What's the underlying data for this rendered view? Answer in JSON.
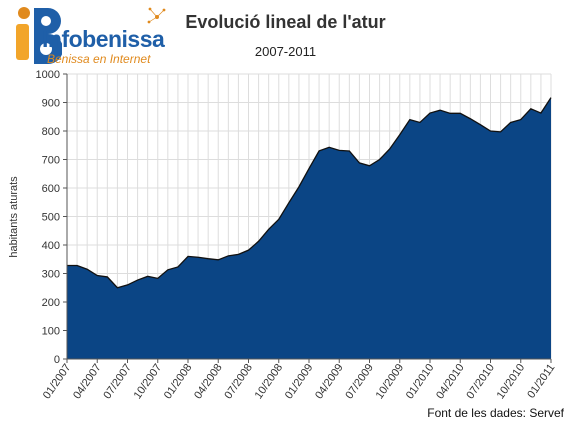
{
  "logo": {
    "brand": "Infobenissa",
    "tagline": "Benissa en Internet"
  },
  "colors": {
    "area_fill": "#0b4585",
    "area_line": "#111111",
    "grid": "#dddddd",
    "brand": "#1f5fa8",
    "brand_accent": "#e08a1e"
  },
  "source_note": "Font de les dades: Servef",
  "chart_data": {
    "type": "area",
    "title": "Evolució lineal de l'atur",
    "subtitle": "2007-2011",
    "xlabel": "",
    "ylabel": "habitants aturats",
    "ylim": [
      0,
      1000
    ],
    "yticks": [
      0,
      100,
      200,
      300,
      400,
      500,
      600,
      700,
      800,
      900,
      1000
    ],
    "grid": true,
    "x_tick_labels": [
      "01/2007",
      "04/2007",
      "07/2007",
      "10/2007",
      "01/2008",
      "04/2008",
      "07/2008",
      "10/2008",
      "01/2009",
      "04/2009",
      "07/2009",
      "10/2009",
      "01/2010",
      "04/2010",
      "07/2010",
      "10/2010",
      "01/2011"
    ],
    "x": [
      "01/2007",
      "02/2007",
      "03/2007",
      "04/2007",
      "05/2007",
      "06/2007",
      "07/2007",
      "08/2007",
      "09/2007",
      "10/2007",
      "11/2007",
      "12/2007",
      "01/2008",
      "02/2008",
      "03/2008",
      "04/2008",
      "05/2008",
      "06/2008",
      "07/2008",
      "08/2008",
      "09/2008",
      "10/2008",
      "11/2008",
      "12/2008",
      "01/2009",
      "02/2009",
      "03/2009",
      "04/2009",
      "05/2009",
      "06/2009",
      "07/2009",
      "08/2009",
      "09/2009",
      "10/2009",
      "11/2009",
      "12/2009",
      "01/2010",
      "02/2010",
      "03/2010",
      "04/2010",
      "05/2010",
      "06/2010",
      "07/2010",
      "08/2010",
      "09/2010",
      "10/2010",
      "11/2010",
      "12/2010",
      "01/2011"
    ],
    "values": [
      328,
      328,
      315,
      293,
      288,
      250,
      260,
      277,
      290,
      283,
      313,
      323,
      360,
      357,
      352,
      348,
      362,
      367,
      382,
      413,
      455,
      490,
      548,
      604,
      668,
      730,
      743,
      732,
      730,
      688,
      678,
      700,
      737,
      787,
      840,
      830,
      863,
      873,
      862,
      862,
      843,
      822,
      800,
      797,
      830,
      840,
      878,
      863,
      917
    ]
  }
}
